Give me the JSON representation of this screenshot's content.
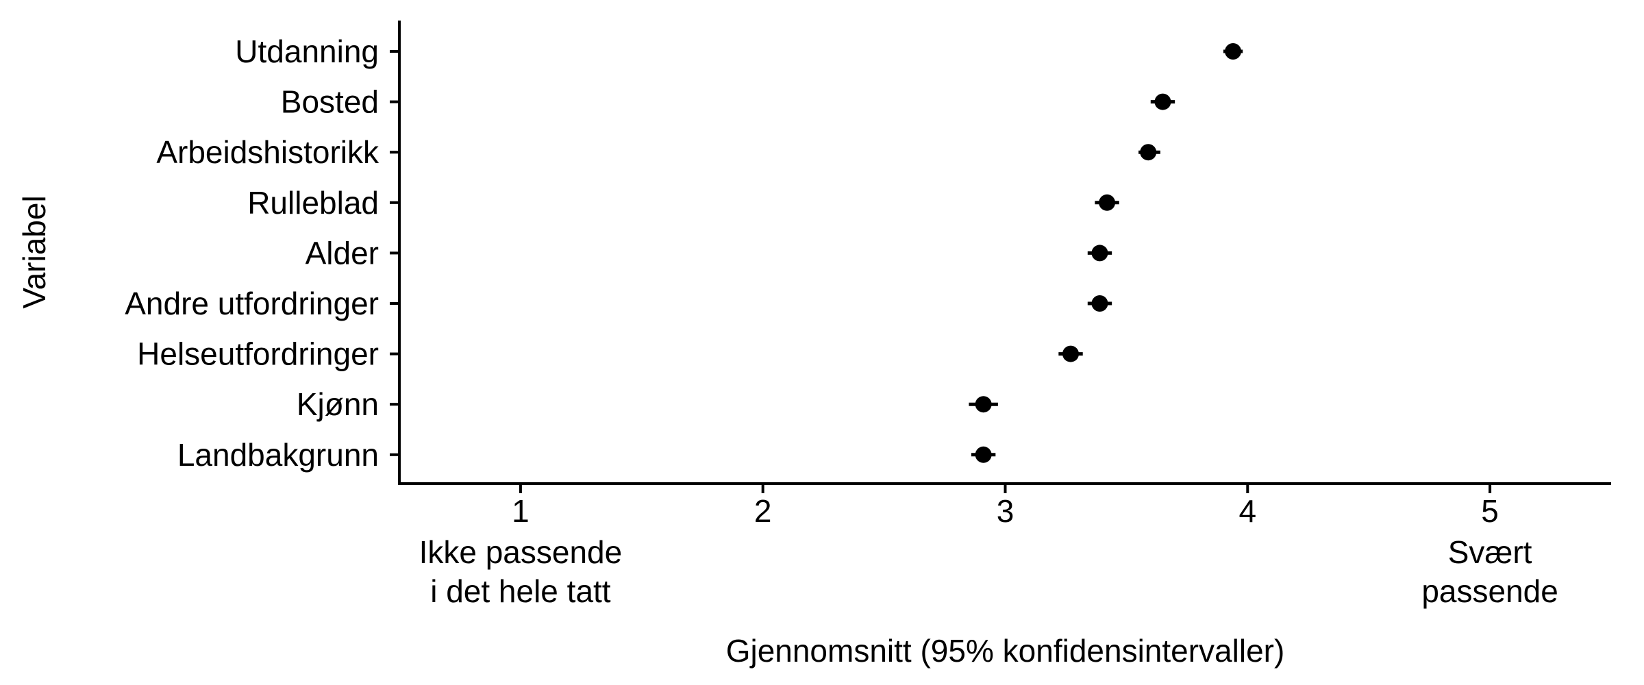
{
  "chart_data": {
    "type": "scatter",
    "subtype": "dot-and-whisker",
    "title": "",
    "xlabel": "Gjennomsnitt (95% konfidensintervaller)",
    "ylabel": "Variabel",
    "xlim": [
      0.5,
      5.5
    ],
    "x_ticks": [
      1,
      2,
      3,
      4,
      5
    ],
    "x_tick_labels": [
      "1",
      "2",
      "3",
      "4",
      "5"
    ],
    "x_anchor_labels": [
      {
        "at": 1,
        "lines": [
          "Ikke passende",
          "i det hele tatt"
        ]
      },
      {
        "at": 5,
        "lines": [
          "Svært",
          "passende"
        ]
      }
    ],
    "grid": false,
    "legend": "none",
    "marker_color": "#000000",
    "categories": [
      "Utdanning",
      "Bosted",
      "Arbeidshistorikk",
      "Rulleblad",
      "Alder",
      "Andre utfordringer",
      "Helseutfordringer",
      "Kjønn",
      "Landbakgrunn"
    ],
    "series": [
      {
        "mean": [
          3.94,
          3.65,
          3.59,
          3.42,
          3.39,
          3.39,
          3.27,
          2.91,
          2.91
        ],
        "lower": [
          3.9,
          3.6,
          3.55,
          3.37,
          3.34,
          3.34,
          3.22,
          2.85,
          2.86
        ],
        "upper": [
          3.98,
          3.7,
          3.64,
          3.47,
          3.44,
          3.44,
          3.32,
          2.97,
          2.96
        ]
      }
    ]
  }
}
